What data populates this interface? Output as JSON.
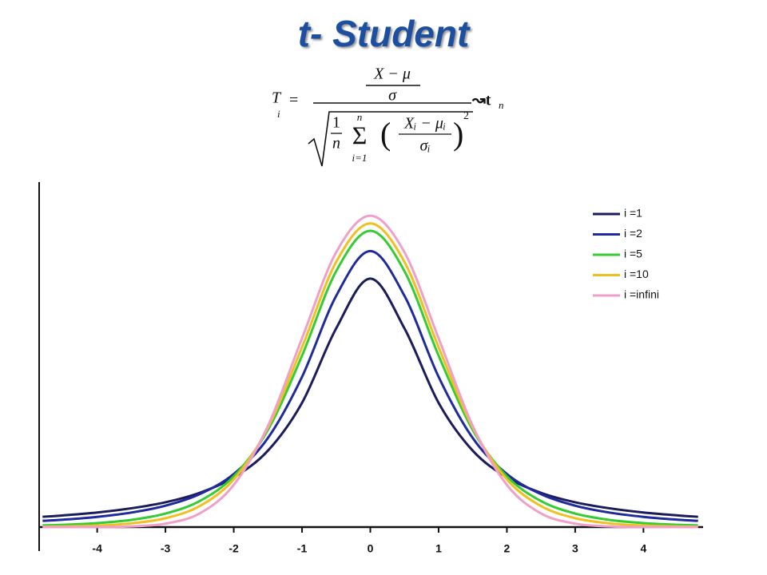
{
  "chart_data": {
    "type": "line",
    "title": "t- Student",
    "formula": {
      "lhs": "T",
      "lhs_sub": "i",
      "equals": "=",
      "num_top": "X − μ",
      "num_bottom": "σ",
      "one": "1",
      "n": "n",
      "sum": "Σ",
      "sum_top": "n",
      "sum_bottom": "i=1",
      "open": "(",
      "inner_top": "Xᵢ − μᵢ",
      "inner_bottom": "σᵢ",
      "close": ")",
      "power": "2",
      "dist": "↝t",
      "dist_sub": "n"
    },
    "x": [
      -4.8,
      -4.5,
      -4,
      -3.5,
      -3,
      -2.5,
      -2,
      -1.5,
      -1,
      -0.5,
      0,
      0.5,
      1,
      1.5,
      2,
      2.5,
      3,
      3.5,
      4,
      4.5,
      4.8
    ],
    "series": [
      {
        "name": "i =1",
        "color": "#1c1c5a",
        "values": [
          0.0132,
          0.015,
          0.0187,
          0.0241,
          0.0318,
          0.0439,
          0.0637,
          0.0979,
          0.1592,
          0.2546,
          0.3183,
          0.2546,
          0.1592,
          0.0979,
          0.0637,
          0.0439,
          0.0318,
          0.0241,
          0.0187,
          0.015,
          0.0132
        ]
      },
      {
        "name": "i =2",
        "color": "#1f2a9c",
        "values": [
          0.008,
          0.0095,
          0.0131,
          0.0186,
          0.0274,
          0.0422,
          0.068,
          0.1141,
          0.1925,
          0.2963,
          0.3536,
          0.2963,
          0.1925,
          0.1141,
          0.068,
          0.0422,
          0.0274,
          0.0186,
          0.0131,
          0.0095,
          0.008
        ]
      },
      {
        "name": "i =5",
        "color": "#33cc33",
        "values": [
          0.0022,
          0.0029,
          0.0051,
          0.0092,
          0.0173,
          0.0333,
          0.0651,
          0.1245,
          0.2197,
          0.3279,
          0.3796,
          0.3279,
          0.2197,
          0.1245,
          0.0651,
          0.0333,
          0.0173,
          0.0092,
          0.0051,
          0.0029,
          0.0022
        ]
      },
      {
        "name": "i =10",
        "color": "#f0c020",
        "values": [
          0.0005,
          0.0009,
          0.002,
          0.0048,
          0.0114,
          0.0269,
          0.0611,
          0.1275,
          0.2304,
          0.3397,
          0.3891,
          0.3397,
          0.2304,
          0.1275,
          0.0611,
          0.0269,
          0.0114,
          0.0048,
          0.002,
          0.0009,
          0.0005
        ]
      },
      {
        "name": "i =infini",
        "color": "#f0a0c8",
        "values": [
          0,
          0,
          0.0001,
          0.0009,
          0.0044,
          0.0175,
          0.054,
          0.1295,
          0.242,
          0.3521,
          0.3989,
          0.3521,
          0.242,
          0.1295,
          0.054,
          0.0175,
          0.0044,
          0.0009,
          0.0001,
          0,
          0
        ]
      }
    ],
    "xlim": [
      -4.85,
      4.85
    ],
    "ylim": [
      0,
      0.44
    ],
    "xticks": [
      -4,
      -3,
      -2,
      -1,
      0,
      1,
      2,
      3,
      4
    ],
    "legend": "upper right"
  }
}
